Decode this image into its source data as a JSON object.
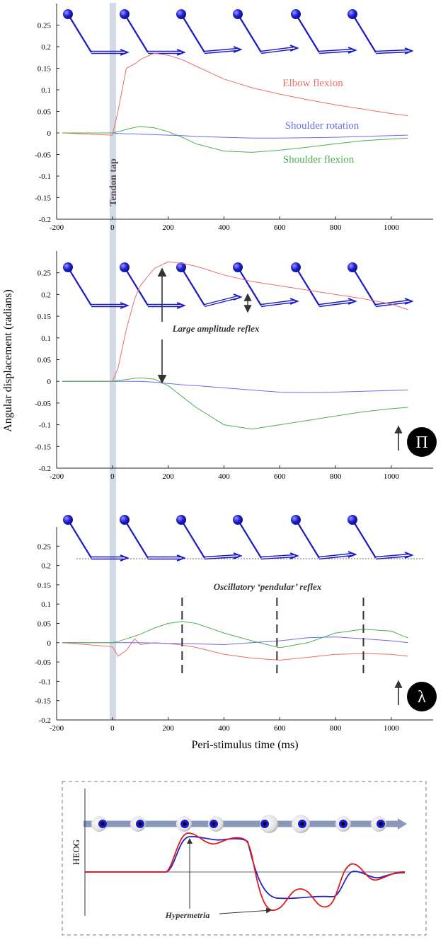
{
  "chart_data": [
    {
      "type": "line",
      "xlim": [
        -200,
        1150
      ],
      "ylim": [
        -0.2,
        0.3
      ],
      "xticks": [
        -200,
        0,
        200,
        400,
        600,
        800,
        1000
      ],
      "yticks": [
        0.25,
        0.2,
        0.15,
        0.1,
        0.05,
        0,
        -0.05,
        -0.1,
        -0.15,
        -0.2
      ],
      "x": [
        -180,
        0,
        20,
        50,
        80,
        100,
        150,
        200,
        250,
        300,
        400,
        500,
        600,
        700,
        800,
        900,
        1000,
        1060
      ],
      "series": [
        {
          "name": "Elbow flexion",
          "color": "#ef6b6b",
          "values": [
            0,
            -0.005,
            0.05,
            0.15,
            0.16,
            0.17,
            0.185,
            0.18,
            0.17,
            0.155,
            0.125,
            0.105,
            0.09,
            0.077,
            0.065,
            0.055,
            0.045,
            0.04
          ]
        },
        {
          "name": "Shoulder rotation",
          "color": "#6b6bef",
          "values": [
            0,
            0,
            -0.001,
            -0.002,
            -0.002,
            -0.003,
            -0.004,
            -0.005,
            -0.006,
            -0.008,
            -0.01,
            -0.012,
            -0.012,
            -0.011,
            -0.01,
            -0.008,
            -0.006,
            -0.005
          ]
        },
        {
          "name": "Shoulder flexion",
          "color": "#4fae4f",
          "values": [
            0,
            0,
            0.003,
            0.008,
            0.013,
            0.015,
            0.012,
            0.003,
            -0.01,
            -0.025,
            -0.042,
            -0.045,
            -0.04,
            -0.033,
            -0.025,
            -0.018,
            -0.014,
            -0.012
          ]
        }
      ],
      "annotations": [
        "Tendon tap"
      ]
    },
    {
      "type": "line",
      "xlim": [
        -200,
        1150
      ],
      "ylim": [
        -0.2,
        0.3
      ],
      "ylabel": "Angular displacement (radians)",
      "xticks": [
        -200,
        0,
        200,
        400,
        600,
        800,
        1000
      ],
      "yticks": [
        0.25,
        0.2,
        0.15,
        0.1,
        0.05,
        0,
        -0.05,
        -0.1,
        -0.15,
        -0.2
      ],
      "x": [
        -180,
        0,
        20,
        50,
        80,
        100,
        150,
        200,
        250,
        300,
        400,
        500,
        600,
        700,
        800,
        900,
        1000,
        1060
      ],
      "series": [
        {
          "color": "#ef6b6b",
          "values": [
            0,
            0,
            0.03,
            0.12,
            0.19,
            0.22,
            0.26,
            0.275,
            0.272,
            0.265,
            0.245,
            0.23,
            0.22,
            0.21,
            0.2,
            0.19,
            0.178,
            0.165
          ]
        },
        {
          "color": "#6b6bef",
          "values": [
            0,
            0,
            0,
            0,
            0,
            0,
            -0.002,
            -0.005,
            -0.008,
            -0.01,
            -0.015,
            -0.02,
            -0.025,
            -0.026,
            -0.025,
            -0.023,
            -0.021,
            -0.02
          ]
        },
        {
          "color": "#4fae4f",
          "values": [
            0,
            0,
            0.002,
            0.004,
            0.007,
            0.008,
            0.005,
            -0.01,
            -0.035,
            -0.06,
            -0.1,
            -0.11,
            -0.1,
            -0.09,
            -0.08,
            -0.07,
            -0.063,
            -0.06
          ]
        }
      ],
      "annotations": [
        "Large amplitude reflex",
        "Π"
      ]
    },
    {
      "type": "line",
      "xlim": [
        -200,
        1150
      ],
      "ylim": [
        -0.2,
        0.3
      ],
      "xlabel": "Peri-stimulus time (ms)",
      "xticks": [
        -200,
        0,
        200,
        400,
        600,
        800,
        1000
      ],
      "yticks": [
        0.25,
        0.2,
        0.15,
        0.1,
        0.05,
        0,
        -0.05,
        -0.1,
        -0.15,
        -0.2
      ],
      "x": [
        -180,
        0,
        20,
        50,
        80,
        100,
        150,
        200,
        250,
        300,
        400,
        500,
        600,
        700,
        800,
        900,
        1000,
        1060
      ],
      "series": [
        {
          "color": "#ef6b6b",
          "values": [
            0,
            -0.01,
            -0.035,
            -0.02,
            0.01,
            -0.005,
            0,
            -0.002,
            -0.006,
            -0.012,
            -0.03,
            -0.04,
            -0.045,
            -0.038,
            -0.03,
            -0.028,
            -0.03,
            -0.035
          ]
        },
        {
          "color": "#6b6bef",
          "values": [
            0,
            0,
            0,
            0,
            0,
            0,
            -0.001,
            -0.002,
            -0.002,
            -0.003,
            -0.005,
            0,
            0.005,
            0.013,
            0.015,
            0.01,
            0.005,
            0
          ]
        },
        {
          "color": "#4fae4f",
          "values": [
            0,
            0,
            0.003,
            0.01,
            0.017,
            0.022,
            0.038,
            0.05,
            0.055,
            0.05,
            0.025,
            0.005,
            -0.013,
            0,
            0.025,
            0.035,
            0.03,
            0.012
          ]
        }
      ],
      "markers": [
        250,
        590,
        900
      ],
      "annotations": [
        "Oscillatory ‘pendular’ reflex",
        "λ"
      ]
    }
  ],
  "diagram": {
    "axis_label": "HEOG",
    "annotation": "Hypermetria"
  }
}
